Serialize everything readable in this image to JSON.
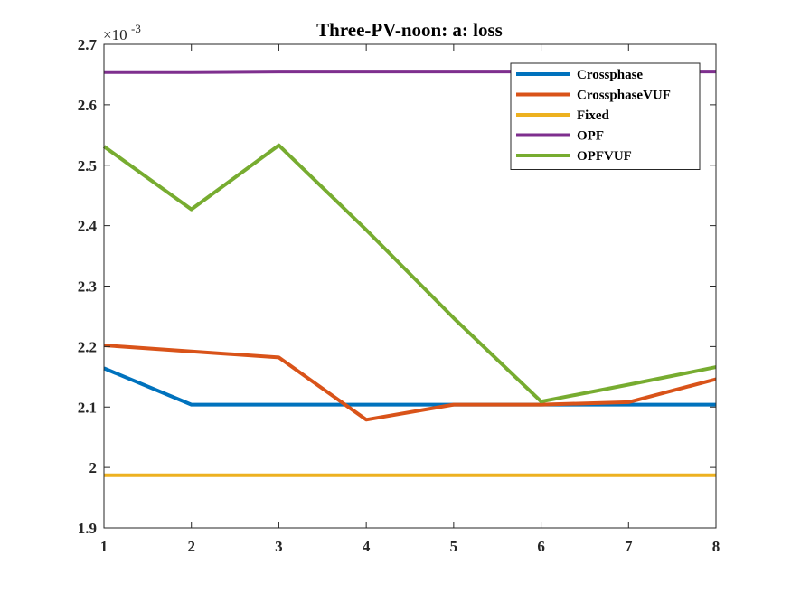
{
  "chart_data": {
    "type": "line",
    "title": "Three-PV-noon: a: loss",
    "xlabel": "",
    "ylabel": "",
    "y_exponent_label": "-3",
    "xlim": [
      1,
      8
    ],
    "ylim": [
      1.9,
      2.7
    ],
    "x_ticks": [
      1,
      2,
      3,
      4,
      5,
      6,
      7,
      8
    ],
    "y_ticks": [
      1.9,
      2.0,
      2.1,
      2.2,
      2.3,
      2.4,
      2.5,
      2.6,
      2.7
    ],
    "y_tick_labels": [
      "1.9",
      "2",
      "2.1",
      "2.2",
      "2.3",
      "2.4",
      "2.5",
      "2.6",
      "2.7"
    ],
    "grid": false,
    "legend_position": "top-right",
    "x": [
      1,
      2,
      3,
      4,
      5,
      6,
      7,
      8
    ],
    "series": [
      {
        "name": "Crossphase",
        "color": "#0072BD",
        "values": [
          2.164,
          2.104,
          2.104,
          2.104,
          2.104,
          2.104,
          2.104,
          2.104
        ]
      },
      {
        "name": "CrossphaseVUF",
        "color": "#D95319",
        "values": [
          2.202,
          2.192,
          2.182,
          2.079,
          2.104,
          2.104,
          2.108,
          2.146
        ]
      },
      {
        "name": "Fixed",
        "color": "#EDB120",
        "values": [
          1.987,
          1.987,
          1.987,
          1.987,
          1.987,
          1.987,
          1.987,
          1.987
        ]
      },
      {
        "name": "OPF",
        "color": "#7E2F8E",
        "values": [
          2.654,
          2.654,
          2.655,
          2.655,
          2.655,
          2.655,
          2.655,
          2.655
        ]
      },
      {
        "name": "OPFVUF",
        "color": "#77AC30",
        "values": [
          2.531,
          2.427,
          2.533,
          2.393,
          2.247,
          2.109,
          2.137,
          2.166
        ]
      }
    ]
  }
}
